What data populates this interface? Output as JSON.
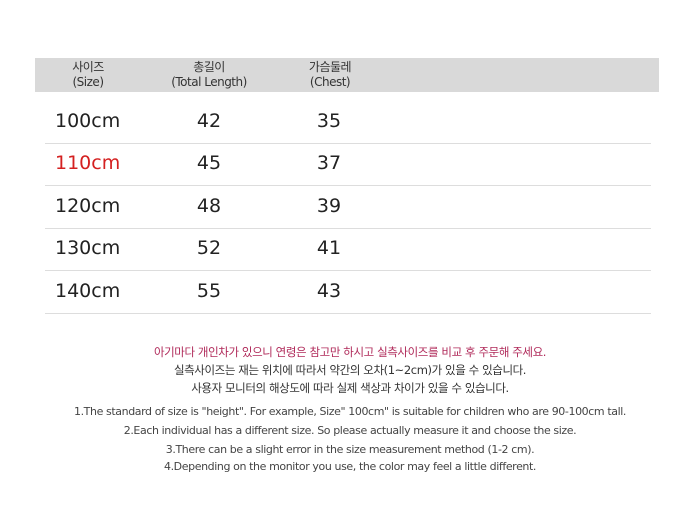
{
  "table": {
    "headers": [
      {
        "ko": "사이즈",
        "en": "(Size)"
      },
      {
        "ko": "총길이",
        "en": "(Total Length)"
      },
      {
        "ko": "가슴둘레",
        "en": "(Chest)"
      }
    ],
    "rows": [
      {
        "size": "100cm",
        "length": "42",
        "chest": "35"
      },
      {
        "size": "110cm",
        "length": "45",
        "chest": "37",
        "highlight": true
      },
      {
        "size": "120cm",
        "length": "48",
        "chest": "39"
      },
      {
        "size": "130cm",
        "length": "52",
        "chest": "41"
      },
      {
        "size": "140cm",
        "length": "55",
        "chest": "43"
      }
    ],
    "highlight_color": "#d42020"
  },
  "notes_ko": [
    "아기마다 개인차가 있으니 연령은 참고만 하시고 실측사이즈를 비교 후 주문해 주세요.",
    "실측사이즈는 재는 위치에 따라서 약간의  오차(1~2cm)가 있을 수 있습니다.",
    "사용자 모니터의 해상도에 따라 실제 색상과 차이가 있을 수 있습니다."
  ],
  "notes_en": [
    "1.The standard of size is \"height\". For example,  Size\" 100cm\" is suitable for children who are 90-100cm tall.",
    "2.Each individual has a different size. So please actually measure it and choose the size.",
    "3.There can be a slight error in the size measurement method (1-2 cm).",
    "4.Depending on the monitor you use, the color may feel a little different."
  ]
}
